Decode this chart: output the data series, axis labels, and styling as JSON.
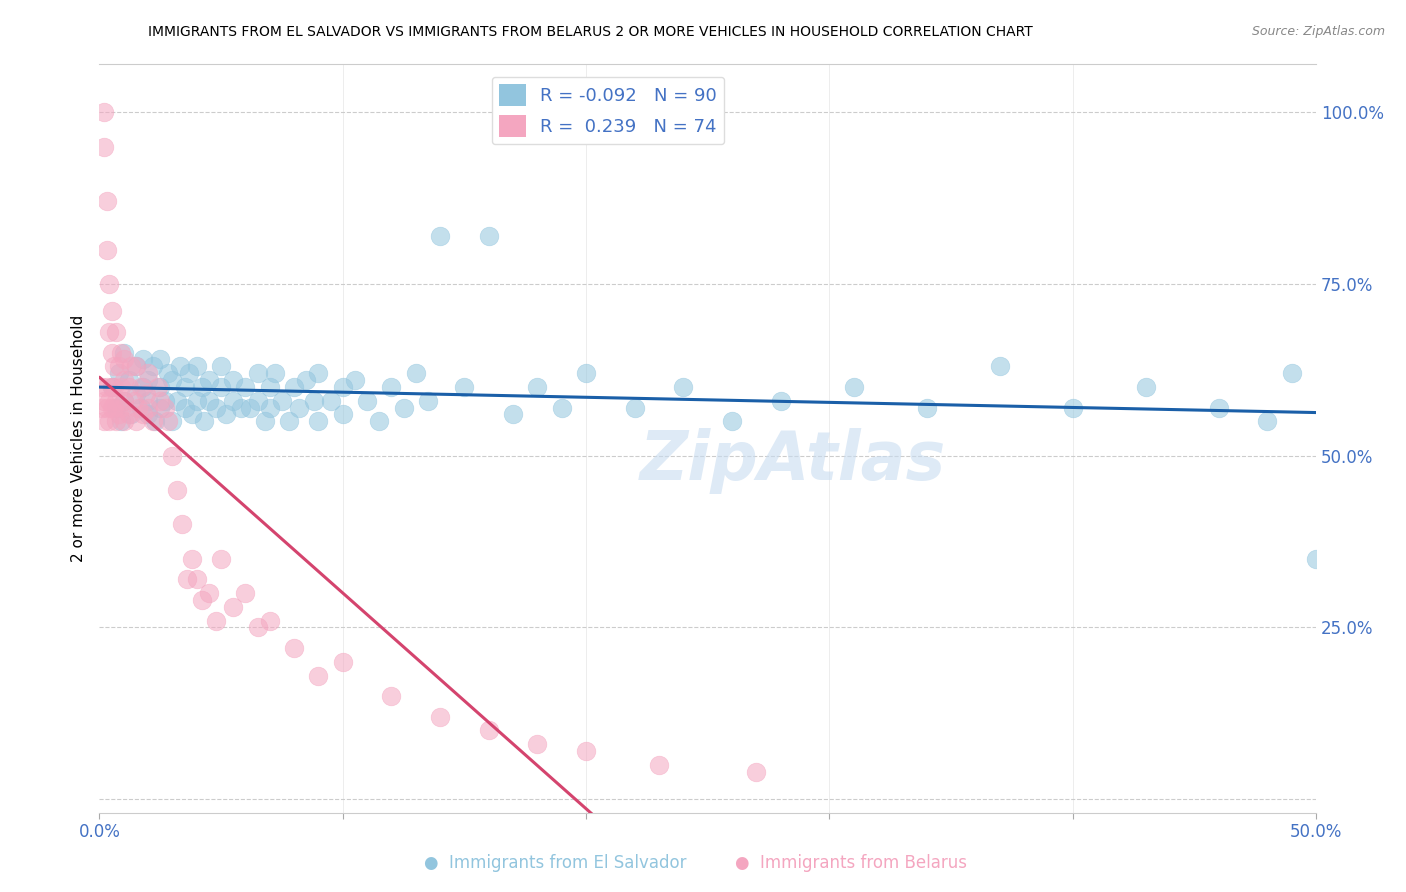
{
  "title": "IMMIGRANTS FROM EL SALVADOR VS IMMIGRANTS FROM BELARUS 2 OR MORE VEHICLES IN HOUSEHOLD CORRELATION CHART",
  "source": "Source: ZipAtlas.com",
  "ylabel": "2 or more Vehicles in Household",
  "x_lim": [
    0.0,
    0.5
  ],
  "y_lim": [
    -0.02,
    1.07
  ],
  "y_ticks": [
    0.0,
    0.25,
    0.5,
    0.75,
    1.0
  ],
  "y_tick_labels_right": [
    "",
    "25.0%",
    "50.0%",
    "75.0%",
    "100.0%"
  ],
  "x_ticks": [
    0.0,
    0.1,
    0.2,
    0.3,
    0.4,
    0.5
  ],
  "x_tick_labels": [
    "0.0%",
    "",
    "",
    "",
    "",
    "50.0%"
  ],
  "watermark": "ZipAtlas",
  "el_salvador_color": "#92c5de",
  "belarus_color": "#f4a6c0",
  "el_salvador_line_color": "#1a5fa8",
  "belarus_line_color": "#d4446e",
  "legend_r_es": "-0.092",
  "legend_n_es": "90",
  "legend_r_be": "0.239",
  "legend_n_be": "74",
  "background_color": "#ffffff",
  "grid_color": "#cccccc",
  "title_color": "#000000",
  "source_color": "#888888",
  "tick_label_color": "#4472c4",
  "axis_label_color": "#000000",
  "el_salvador_x": [
    0.005,
    0.007,
    0.008,
    0.009,
    0.01,
    0.01,
    0.012,
    0.013,
    0.015,
    0.015,
    0.017,
    0.018,
    0.018,
    0.02,
    0.02,
    0.02,
    0.022,
    0.023,
    0.025,
    0.025,
    0.025,
    0.027,
    0.028,
    0.03,
    0.03,
    0.032,
    0.033,
    0.035,
    0.035,
    0.037,
    0.038,
    0.04,
    0.04,
    0.042,
    0.043,
    0.045,
    0.045,
    0.048,
    0.05,
    0.05,
    0.052,
    0.055,
    0.055,
    0.058,
    0.06,
    0.062,
    0.065,
    0.065,
    0.068,
    0.07,
    0.07,
    0.072,
    0.075,
    0.078,
    0.08,
    0.082,
    0.085,
    0.088,
    0.09,
    0.09,
    0.095,
    0.1,
    0.1,
    0.105,
    0.11,
    0.115,
    0.12,
    0.125,
    0.13,
    0.135,
    0.14,
    0.15,
    0.16,
    0.17,
    0.18,
    0.19,
    0.2,
    0.22,
    0.24,
    0.26,
    0.28,
    0.31,
    0.34,
    0.37,
    0.4,
    0.43,
    0.46,
    0.48,
    0.49,
    0.5
  ],
  "el_salvador_y": [
    0.6,
    0.57,
    0.62,
    0.55,
    0.58,
    0.65,
    0.61,
    0.56,
    0.63,
    0.59,
    0.57,
    0.64,
    0.6,
    0.56,
    0.61,
    0.58,
    0.63,
    0.55,
    0.6,
    0.57,
    0.64,
    0.58,
    0.62,
    0.55,
    0.61,
    0.58,
    0.63,
    0.57,
    0.6,
    0.62,
    0.56,
    0.58,
    0.63,
    0.6,
    0.55,
    0.58,
    0.61,
    0.57,
    0.6,
    0.63,
    0.56,
    0.58,
    0.61,
    0.57,
    0.6,
    0.57,
    0.62,
    0.58,
    0.55,
    0.6,
    0.57,
    0.62,
    0.58,
    0.55,
    0.6,
    0.57,
    0.61,
    0.58,
    0.62,
    0.55,
    0.58,
    0.6,
    0.56,
    0.61,
    0.58,
    0.55,
    0.6,
    0.57,
    0.62,
    0.58,
    0.82,
    0.6,
    0.82,
    0.56,
    0.6,
    0.57,
    0.62,
    0.57,
    0.6,
    0.55,
    0.58,
    0.6,
    0.57,
    0.63,
    0.57,
    0.6,
    0.57,
    0.55,
    0.62,
    0.35
  ],
  "belarus_x": [
    0.001,
    0.001,
    0.002,
    0.002,
    0.002,
    0.002,
    0.003,
    0.003,
    0.003,
    0.003,
    0.004,
    0.004,
    0.004,
    0.004,
    0.005,
    0.005,
    0.005,
    0.005,
    0.006,
    0.006,
    0.006,
    0.007,
    0.007,
    0.007,
    0.008,
    0.008,
    0.009,
    0.009,
    0.009,
    0.01,
    0.01,
    0.01,
    0.01,
    0.012,
    0.012,
    0.013,
    0.014,
    0.015,
    0.015,
    0.016,
    0.017,
    0.018,
    0.019,
    0.02,
    0.02,
    0.022,
    0.024,
    0.025,
    0.027,
    0.028,
    0.03,
    0.032,
    0.034,
    0.036,
    0.038,
    0.04,
    0.042,
    0.045,
    0.048,
    0.05,
    0.055,
    0.06,
    0.065,
    0.07,
    0.08,
    0.09,
    0.1,
    0.12,
    0.14,
    0.16,
    0.18,
    0.2,
    0.23,
    0.27
  ],
  "belarus_y": [
    0.6,
    0.57,
    0.58,
    0.55,
    0.95,
    1.0,
    0.6,
    0.57,
    0.8,
    0.87,
    0.58,
    0.55,
    0.75,
    0.68,
    0.6,
    0.57,
    0.71,
    0.65,
    0.57,
    0.6,
    0.63,
    0.55,
    0.58,
    0.68,
    0.56,
    0.63,
    0.57,
    0.6,
    0.65,
    0.55,
    0.58,
    0.61,
    0.64,
    0.56,
    0.6,
    0.63,
    0.58,
    0.55,
    0.63,
    0.57,
    0.6,
    0.56,
    0.59,
    0.57,
    0.62,
    0.55,
    0.6,
    0.58,
    0.57,
    0.55,
    0.5,
    0.45,
    0.4,
    0.32,
    0.35,
    0.32,
    0.29,
    0.3,
    0.26,
    0.35,
    0.28,
    0.3,
    0.25,
    0.26,
    0.22,
    0.18,
    0.2,
    0.15,
    0.12,
    0.1,
    0.08,
    0.07,
    0.05,
    0.04
  ]
}
